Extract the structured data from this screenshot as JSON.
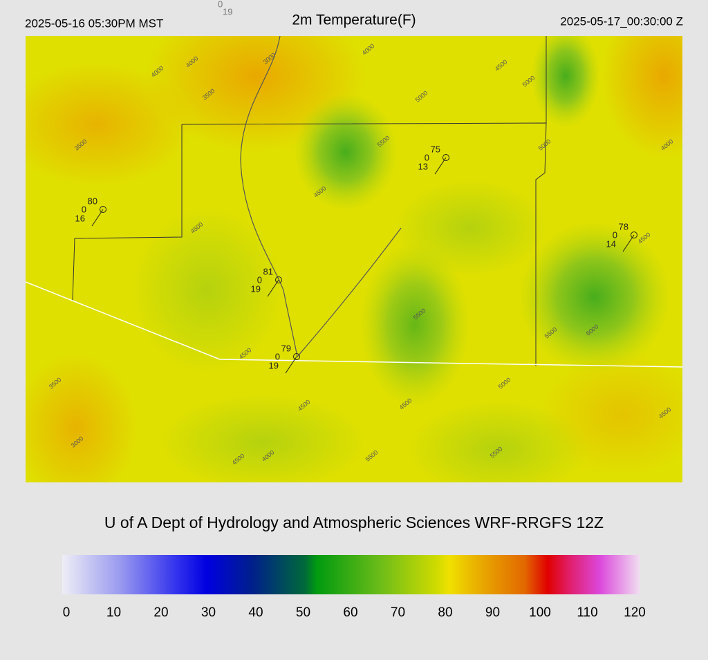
{
  "header": {
    "valid_local": "2025-05-16 05:30PM MST",
    "title": "2m Temperature(F)",
    "valid_utc": "2025-05-17_00:30:00 Z",
    "station_key": {
      "wind": 0,
      "dewpoint": 19
    }
  },
  "map": {
    "contour_labels": [
      4000,
      4000,
      3000,
      3500,
      4000,
      3500,
      5000,
      4500,
      5500,
      5000,
      5000,
      4500,
      4500,
      5500,
      5500,
      6000,
      4500,
      3500,
      5000,
      4500,
      4500,
      3000,
      4000,
      4500,
      5500,
      5500,
      4500,
      4000,
      4500
    ],
    "stations": [
      {
        "temperature": 80,
        "wind": 0,
        "dewpoint": 16
      },
      {
        "temperature": 75,
        "wind": 0,
        "dewpoint": 13
      },
      {
        "temperature": 78,
        "wind": 0,
        "dewpoint": 14
      },
      {
        "temperature": 81,
        "wind": 0,
        "dewpoint": 19
      },
      {
        "temperature": 79,
        "wind": 0,
        "dewpoint": 19
      }
    ]
  },
  "credit": "U of A Dept of Hydrology and Atmospheric Sciences WRF-RRGFS 12Z",
  "colorbar": {
    "range": [
      0,
      120
    ],
    "ticks": [
      0,
      10,
      20,
      30,
      40,
      50,
      60,
      70,
      80,
      90,
      100,
      110,
      120
    ]
  }
}
